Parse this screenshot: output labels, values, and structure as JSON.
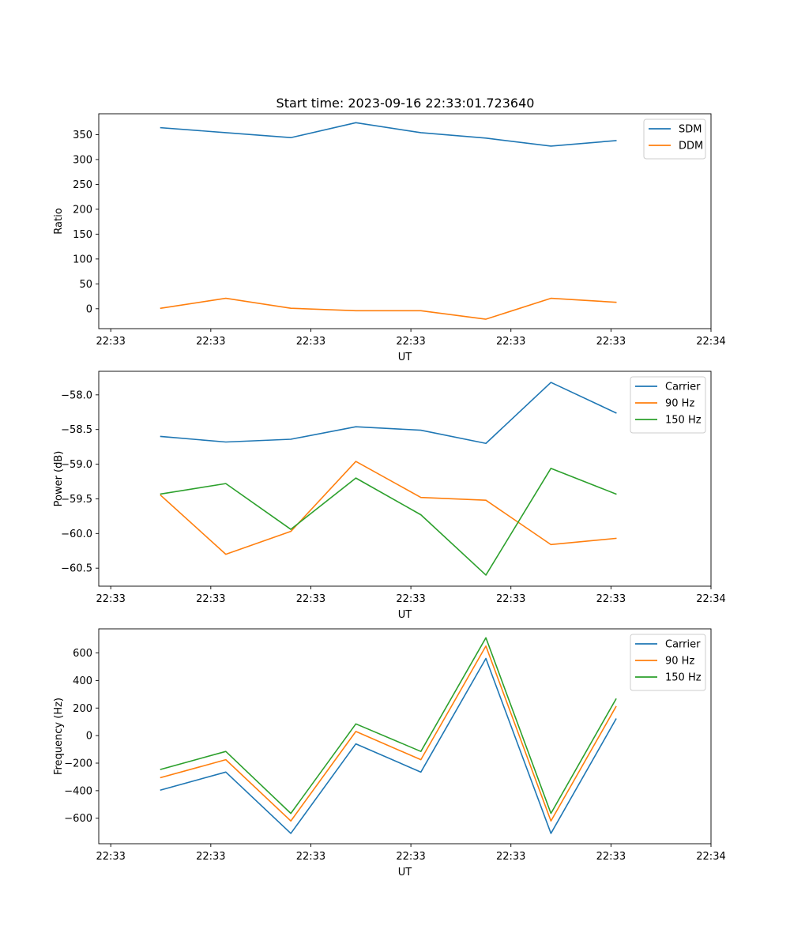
{
  "figure_title": "Start time: 2023-09-16 22:33:01.723640",
  "colors": {
    "blue": "#1f77b4",
    "orange": "#ff7f0e",
    "green": "#2ca02c"
  },
  "chart_data": [
    {
      "type": "line",
      "xlabel": "UT",
      "ylabel": "Ratio",
      "x_tick_labels": [
        "22:33",
        "22:33",
        "22:33",
        "22:33",
        "22:33",
        "22:33",
        "22:34"
      ],
      "x_tick_positions": [
        0,
        1,
        2,
        3,
        4,
        5,
        6
      ],
      "xlim": [
        -0.12,
        6.0
      ],
      "x": [
        0.5,
        1.15,
        1.8,
        2.45,
        3.1,
        3.75,
        4.4,
        5.05
      ],
      "ylim": [
        -40,
        392
      ],
      "y_ticks": [
        0,
        50,
        100,
        150,
        200,
        250,
        300,
        350
      ],
      "legend_position": "top-right",
      "series": [
        {
          "name": "SDM",
          "color": "blue",
          "values": [
            364,
            354,
            344,
            374,
            354,
            343,
            327,
            338
          ]
        },
        {
          "name": "DDM",
          "color": "orange",
          "values": [
            1,
            21,
            1,
            -4,
            -4,
            -21,
            21,
            13
          ]
        }
      ]
    },
    {
      "type": "line",
      "xlabel": "UT",
      "ylabel": "Power (dB)",
      "x_tick_labels": [
        "22:33",
        "22:33",
        "22:33",
        "22:33",
        "22:33",
        "22:33",
        "22:34"
      ],
      "x_tick_positions": [
        0,
        1,
        2,
        3,
        4,
        5,
        6
      ],
      "xlim": [
        -0.12,
        6.0
      ],
      "x": [
        0.5,
        1.15,
        1.8,
        2.45,
        3.1,
        3.75,
        4.4,
        5.05
      ],
      "ylim": [
        -60.76,
        -57.66
      ],
      "y_ticks": [
        -60.5,
        -60.0,
        -59.5,
        -59.0,
        -58.5,
        -58.0
      ],
      "y_tick_labels": [
        "−60.5",
        "−60.0",
        "−59.5",
        "−59.0",
        "−58.5",
        "−58.0"
      ],
      "legend_position": "top-right",
      "series": [
        {
          "name": "Carrier",
          "color": "blue",
          "values": [
            -58.6,
            -58.68,
            -58.64,
            -58.46,
            -58.51,
            -58.7,
            -57.82,
            -58.26
          ]
        },
        {
          "name": "90 Hz",
          "color": "orange",
          "values": [
            -59.45,
            -60.3,
            -59.97,
            -58.96,
            -59.48,
            -59.52,
            -60.16,
            -60.07
          ]
        },
        {
          "name": "150 Hz",
          "color": "green",
          "values": [
            -59.43,
            -59.28,
            -59.94,
            -59.2,
            -59.73,
            -60.6,
            -59.06,
            -59.43
          ]
        }
      ]
    },
    {
      "type": "line",
      "xlabel": "UT",
      "ylabel": "Frequency (Hz)",
      "x_tick_labels": [
        "22:33",
        "22:33",
        "22:33",
        "22:33",
        "22:33",
        "22:33",
        "22:34"
      ],
      "x_tick_positions": [
        0,
        1,
        2,
        3,
        4,
        5,
        6
      ],
      "xlim": [
        -0.12,
        6.0
      ],
      "x": [
        0.5,
        1.15,
        1.8,
        2.45,
        3.1,
        3.75,
        4.4,
        5.05
      ],
      "ylim": [
        -785,
        775
      ],
      "y_ticks": [
        -600,
        -400,
        -200,
        0,
        200,
        400,
        600
      ],
      "y_tick_labels": [
        "−600",
        "−400",
        "−200",
        "0",
        "200",
        "400",
        "600"
      ],
      "legend_position": "top-right",
      "series": [
        {
          "name": "Carrier",
          "color": "blue",
          "values": [
            -395,
            -265,
            -710,
            -60,
            -265,
            560,
            -710,
            120
          ]
        },
        {
          "name": "90 Hz",
          "color": "orange",
          "values": [
            -305,
            -175,
            -620,
            30,
            -175,
            650,
            -620,
            210
          ]
        },
        {
          "name": "150 Hz",
          "color": "green",
          "values": [
            -245,
            -115,
            -565,
            85,
            -115,
            710,
            -565,
            265
          ]
        }
      ]
    }
  ]
}
